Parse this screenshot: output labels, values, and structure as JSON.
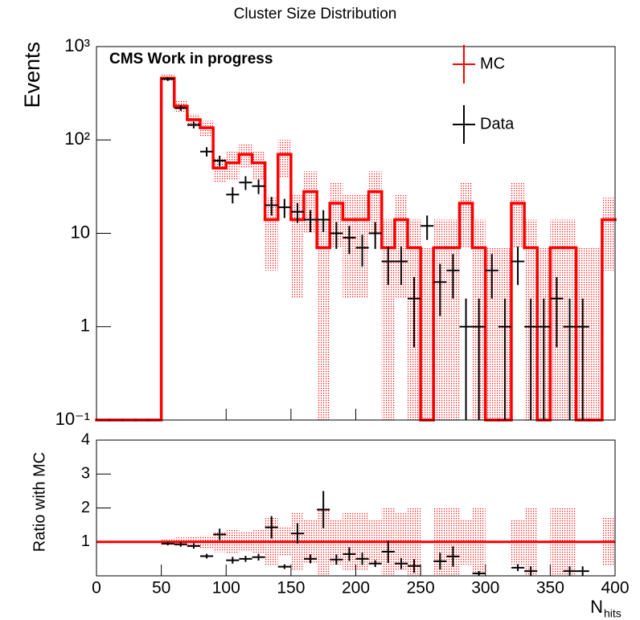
{
  "chart_data": [
    {
      "type": "histogram",
      "title": "Cluster Size Distribution",
      "ylabel": "Events",
      "annotation": "CMS Work in progress",
      "log_y": true,
      "xlim": [
        0,
        400
      ],
      "ylim": [
        0.1,
        1000
      ],
      "yticks": [
        {
          "value": 0.1,
          "label": "10⁻¹"
        },
        1,
        10,
        {
          "value": 100,
          "label": "10²"
        },
        {
          "value": 1000,
          "label": "10³"
        }
      ],
      "legend": "top-right",
      "series": [
        {
          "name": "MC",
          "color": "#ff0000",
          "bins": [
            0,
            10,
            20,
            30,
            40,
            50,
            60,
            70,
            80,
            90,
            100,
            110,
            120,
            130,
            140,
            150,
            160,
            170,
            180,
            190,
            200,
            210,
            220,
            230,
            240,
            250,
            260,
            270,
            280,
            290,
            300,
            310,
            320,
            330,
            340,
            350,
            360,
            370,
            380,
            390,
            400
          ],
          "values": [
            0,
            0,
            0,
            0,
            0,
            460,
            230,
            165,
            135,
            50,
            57,
            70,
            57,
            14,
            70,
            14,
            28,
            7,
            21,
            14,
            14,
            28,
            7,
            14,
            7,
            0,
            7,
            7,
            21,
            7,
            0,
            0,
            21,
            7,
            0,
            7,
            7,
            0,
            0,
            14
          ],
          "errors": [
            0,
            0,
            0,
            0,
            0,
            40,
            30,
            25,
            25,
            15,
            20,
            20,
            20,
            10,
            30,
            12,
            18,
            7,
            14,
            12,
            12,
            18,
            7,
            12,
            7,
            7,
            7,
            7,
            14,
            7,
            7,
            7,
            14,
            7,
            7,
            7,
            7,
            7,
            7,
            10
          ]
        },
        {
          "name": "Data",
          "color": "#000000",
          "xerr": 5,
          "x": [
            55,
            65,
            75,
            85,
            95,
            105,
            115,
            125,
            135,
            145,
            155,
            165,
            175,
            185,
            195,
            205,
            215,
            225,
            235,
            245,
            255,
            265,
            275,
            285,
            295,
            305,
            315,
            325,
            335,
            345,
            355,
            365,
            375
          ],
          "values": [
            450,
            220,
            145,
            75,
            60,
            26,
            35,
            32,
            20,
            19,
            17,
            14,
            14,
            10,
            9,
            7,
            10,
            5,
            5,
            2,
            12,
            3,
            4,
            1,
            1,
            4,
            1,
            5,
            1,
            1,
            2,
            1,
            1
          ],
          "errors": [
            21,
            15,
            12,
            8.7,
            7.7,
            5.1,
            5.9,
            5.7,
            4.5,
            4.4,
            4.1,
            3.7,
            3.7,
            3.2,
            3,
            2.6,
            3.2,
            2.2,
            2.2,
            1.4,
            3.5,
            1.7,
            2,
            1,
            1,
            2,
            1,
            2.2,
            1,
            1,
            1.4,
            1,
            1
          ]
        }
      ]
    },
    {
      "type": "ratio",
      "ylabel": "Ratio with MC",
      "xlabel": "N",
      "xlabel_subscript": "hits",
      "xlim": [
        0,
        400
      ],
      "xticks": [
        0,
        50,
        100,
        150,
        200,
        250,
        300,
        350,
        400
      ],
      "ylim": [
        0,
        4
      ],
      "yticks": [
        1,
        2,
        3,
        4
      ],
      "reference": 1,
      "reference_color": "#ff0000",
      "series": [
        {
          "color": "#000000",
          "xerr": 5,
          "x": [
            55,
            65,
            75,
            85,
            95,
            105,
            115,
            125,
            135,
            145,
            155,
            165,
            175,
            185,
            195,
            205,
            215,
            225,
            235,
            245,
            265,
            275,
            295,
            325,
            335,
            365,
            375
          ],
          "values": [
            0.95,
            0.93,
            0.88,
            0.58,
            1.22,
            0.46,
            0.5,
            0.55,
            1.43,
            0.27,
            1.25,
            0.5,
            1.95,
            0.48,
            0.64,
            0.5,
            0.36,
            0.71,
            0.36,
            0.29,
            0.43,
            0.57,
            0.07,
            0.24,
            0.14,
            0.14,
            0.14
          ],
          "errors": [
            0.05,
            0.07,
            0.08,
            0.07,
            0.17,
            0.1,
            0.09,
            0.1,
            0.33,
            0.07,
            0.3,
            0.13,
            0.55,
            0.15,
            0.2,
            0.18,
            0.1,
            0.33,
            0.16,
            0.2,
            0.25,
            0.3,
            0.07,
            0.1,
            0.14,
            0.14,
            0.14
          ]
        }
      ]
    }
  ]
}
